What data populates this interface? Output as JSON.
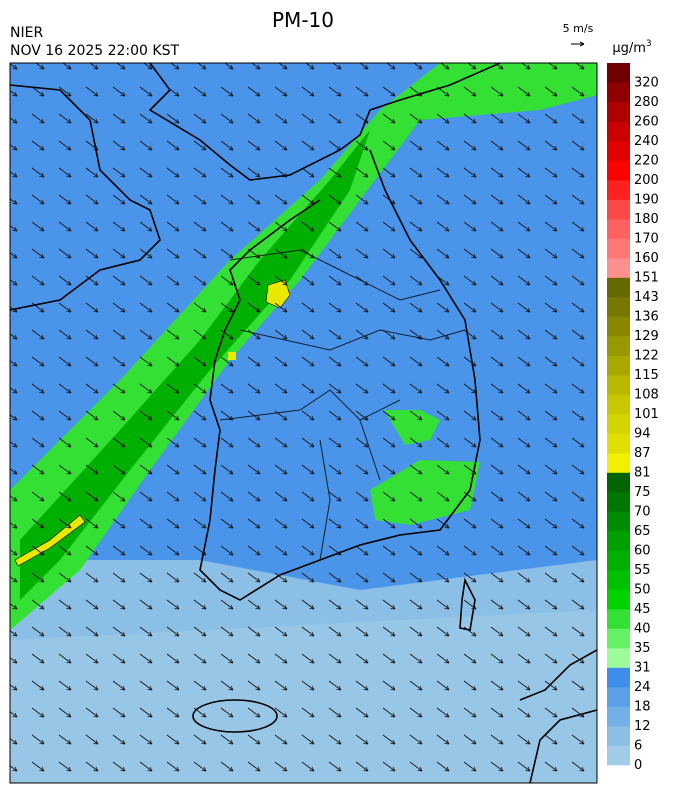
{
  "header": {
    "title": "PM-10",
    "agency": "NIER",
    "timestamp": "NOV 16 2025 22:00 KST",
    "wind_scale": "5 m/s"
  },
  "colorbar": {
    "unit": {
      "base": "µg/m",
      "sup": "3"
    },
    "levels": [
      0,
      6,
      12,
      18,
      24,
      31,
      35,
      40,
      45,
      50,
      55,
      60,
      65,
      70,
      75,
      81,
      87,
      94,
      101,
      108,
      115,
      122,
      129,
      136,
      143,
      151,
      160,
      170,
      180,
      190,
      200,
      220,
      240,
      260,
      280,
      320
    ],
    "colors": [
      "#a0cce8",
      "#8bbfe6",
      "#74b0e8",
      "#5c9fe9",
      "#3f8cea",
      "#9cfc9c",
      "#66f066",
      "#33e033",
      "#00d200",
      "#00c000",
      "#00b000",
      "#00a000",
      "#008c00",
      "#007800",
      "#006400",
      "#f0f000",
      "#e0e000",
      "#d4d400",
      "#c8c800",
      "#b8b800",
      "#a8a800",
      "#989800",
      "#888800",
      "#787800",
      "#686800",
      "#ff9090",
      "#ff7878",
      "#ff6060",
      "#ff4848",
      "#ff2020",
      "#ff0000",
      "#e00000",
      "#c80000",
      "#b00000",
      "#900000",
      "#700000"
    ]
  }
}
